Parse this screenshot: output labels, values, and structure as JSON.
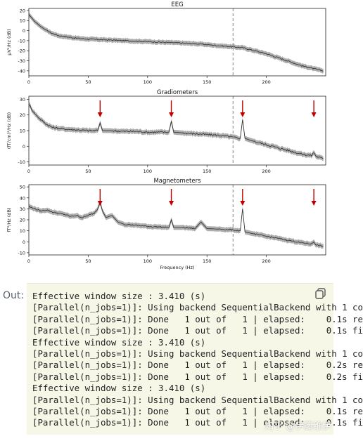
{
  "chart_data": [
    {
      "type": "line",
      "title": "EEG",
      "xlabel": "",
      "ylabel": "µV²/Hz (dB)",
      "xlim": [
        0,
        250
      ],
      "ylim": [
        -45,
        22
      ],
      "xticks": [
        0,
        50,
        100,
        150,
        200
      ],
      "yticks": [
        20,
        10,
        0,
        -10,
        -20,
        -30,
        -40
      ],
      "vline": 172,
      "arrows": [],
      "series": [
        {
          "x": [
            0,
            5,
            10,
            15,
            20,
            25,
            30,
            40,
            50,
            60,
            70,
            80,
            90,
            100,
            110,
            120,
            130,
            140,
            150,
            160,
            170,
            180,
            190,
            200,
            210,
            220,
            230,
            240,
            248
          ],
          "values": [
            16,
            9,
            4,
            0,
            -3,
            -5,
            -6,
            -7.5,
            -8.5,
            -9,
            -9.5,
            -10,
            -10.5,
            -11,
            -11.5,
            -12,
            -12.5,
            -13,
            -14,
            -15,
            -16,
            -17,
            -20,
            -23,
            -27,
            -31,
            -35,
            -38,
            -40
          ]
        }
      ]
    },
    {
      "type": "line",
      "title": "Gradiometers",
      "xlabel": "",
      "ylabel": "(fT/cm)²/Hz (dB)",
      "xlim": [
        0,
        250
      ],
      "ylim": [
        -12,
        32
      ],
      "xticks": [
        0,
        50,
        100,
        150,
        200
      ],
      "yticks": [
        30,
        20,
        10,
        0,
        -10
      ],
      "vline": 172,
      "arrows": [
        60,
        120,
        180,
        240
      ],
      "series": [
        {
          "x": [
            0,
            3,
            6,
            10,
            15,
            20,
            30,
            40,
            50,
            58,
            60,
            62,
            70,
            80,
            90,
            100,
            110,
            118,
            120,
            122,
            130,
            140,
            150,
            160,
            170,
            178,
            180,
            182,
            190,
            200,
            210,
            220,
            230,
            238,
            240,
            242,
            248
          ],
          "values": [
            27,
            23,
            20,
            17,
            14,
            12,
            11,
            10.5,
            10,
            10,
            15,
            10,
            10,
            9.5,
            9.5,
            9,
            9,
            9,
            16,
            9,
            8.5,
            8,
            7.5,
            7,
            6,
            5,
            17,
            5,
            3,
            1,
            -1,
            -3,
            -5,
            -6,
            -4,
            -6.5,
            -8
          ]
        }
      ]
    },
    {
      "type": "line",
      "title": "Magnetometers",
      "xlabel": "Frequency (Hz)",
      "ylabel": "fT²/Hz (dB)",
      "xlim": [
        0,
        250
      ],
      "ylim": [
        -12,
        52
      ],
      "xticks": [
        0,
        50,
        100,
        150,
        200
      ],
      "yticks": [
        50,
        40,
        30,
        20,
        10,
        0,
        -10
      ],
      "vline": 172,
      "arrows": [
        60,
        120,
        180,
        240
      ],
      "series": [
        {
          "x": [
            0,
            5,
            10,
            15,
            20,
            25,
            30,
            35,
            40,
            45,
            50,
            55,
            58,
            60,
            62,
            65,
            70,
            75,
            80,
            90,
            100,
            110,
            118,
            120,
            122,
            130,
            140,
            145,
            150,
            160,
            170,
            178,
            180,
            182,
            190,
            200,
            210,
            220,
            230,
            238,
            240,
            242,
            248
          ],
          "values": [
            32,
            30,
            28,
            29,
            27,
            26,
            25,
            23,
            24,
            22,
            24,
            26,
            30,
            36,
            28,
            22,
            24,
            18,
            16,
            15,
            14,
            13.5,
            13,
            20,
            13,
            13,
            12,
            18,
            12,
            11.5,
            11,
            10,
            30,
            9,
            7,
            5,
            3,
            1,
            -1,
            -2,
            0,
            -3,
            -4
          ]
        }
      ]
    }
  ],
  "output": {
    "prompt": "Out:",
    "lines": [
      "Effective window size : 3.410 (s)",
      "[Parallel(n_jobs=1)]: Using backend SequentialBackend with 1 co",
      "[Parallel(n_jobs=1)]: Done   1 out of   1 | elapsed:    0.1s re",
      "[Parallel(n_jobs=1)]: Done   1 out of   1 | elapsed:    0.1s fi",
      "Effective window size : 3.410 (s)",
      "[Parallel(n_jobs=1)]: Using backend SequentialBackend with 1 co",
      "[Parallel(n_jobs=1)]: Done   1 out of   1 | elapsed:    0.2s re",
      "[Parallel(n_jobs=1)]: Done   1 out of   1 | elapsed:    0.2s fi",
      "Effective window size : 3.410 (s)",
      "[Parallel(n_jobs=1)]: Using backend SequentialBackend with 1 co",
      "[Parallel(n_jobs=1)]: Done   1 out of   1 | elapsed:    0.1s re",
      "[Parallel(n_jobs=1)]: Done   1 out of   1 | elapsed:    0.1s fi"
    ],
    "copy_icon": "copy-icon"
  },
  "watermark": "知乎 @伊藤维伊",
  "colors": {
    "line": "#2a2a2a",
    "band": "#9a9a9a",
    "arrow": "#c00000",
    "vline": "#9a9a9a",
    "output_bg": "#f7f7e8"
  }
}
